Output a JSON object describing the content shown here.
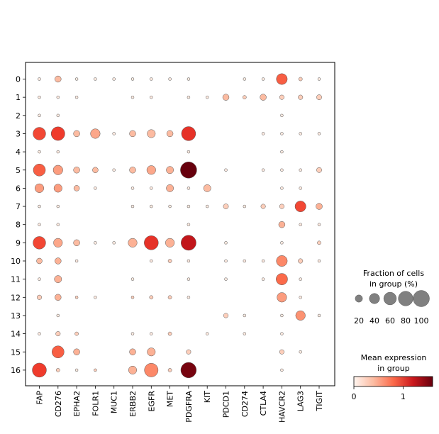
{
  "chart_data": {
    "type": "dotplot",
    "genes": [
      "FAP",
      "CD276",
      "EPHA2",
      "FOLR1",
      "MUC1",
      "ERBB2",
      "EGFR",
      "MET",
      "PDGFRA",
      "KIT",
      "PDCD1",
      "CD274",
      "CTLA4",
      "HAVCR2",
      "LAG3",
      "TIGIT"
    ],
    "groups": [
      "0",
      "1",
      "2",
      "3",
      "4",
      "5",
      "6",
      "7",
      "8",
      "9",
      "10",
      "11",
      "12",
      "13",
      "14",
      "15",
      "16"
    ],
    "fraction": [
      [
        3,
        15,
        3,
        3,
        3,
        3,
        3,
        3,
        3,
        0,
        0,
        3,
        3,
        45,
        5,
        3
      ],
      [
        3,
        3,
        3,
        0,
        0,
        3,
        3,
        0,
        3,
        3,
        15,
        5,
        15,
        8,
        8,
        10
      ],
      [
        3,
        3,
        0,
        0,
        0,
        0,
        0,
        0,
        0,
        0,
        0,
        0,
        0,
        3,
        0,
        0
      ],
      [
        60,
        70,
        15,
        35,
        3,
        15,
        25,
        15,
        75,
        0,
        0,
        0,
        3,
        3,
        3,
        3
      ],
      [
        3,
        3,
        0,
        0,
        0,
        0,
        0,
        0,
        3,
        0,
        0,
        0,
        0,
        3,
        0,
        0
      ],
      [
        55,
        35,
        15,
        12,
        3,
        15,
        30,
        20,
        100,
        0,
        3,
        0,
        3,
        3,
        3,
        10
      ],
      [
        30,
        25,
        12,
        3,
        0,
        3,
        3,
        20,
        3,
        20,
        0,
        0,
        0,
        3,
        3,
        0
      ],
      [
        3,
        3,
        0,
        0,
        0,
        3,
        3,
        3,
        3,
        3,
        10,
        3,
        8,
        8,
        45,
        15
      ],
      [
        3,
        3,
        0,
        0,
        0,
        0,
        0,
        0,
        3,
        0,
        0,
        0,
        0,
        15,
        3,
        3
      ],
      [
        60,
        30,
        15,
        3,
        3,
        30,
        75,
        30,
        85,
        0,
        3,
        0,
        0,
        3,
        0,
        5
      ],
      [
        12,
        15,
        3,
        0,
        0,
        0,
        3,
        5,
        3,
        0,
        3,
        3,
        3,
        45,
        8,
        3
      ],
      [
        3,
        20,
        0,
        0,
        0,
        3,
        0,
        0,
        3,
        0,
        3,
        0,
        3,
        50,
        3,
        0
      ],
      [
        8,
        15,
        3,
        3,
        0,
        3,
        5,
        5,
        3,
        0,
        0,
        0,
        0,
        35,
        3,
        0
      ],
      [
        0,
        3,
        0,
        0,
        0,
        0,
        0,
        0,
        0,
        0,
        8,
        3,
        0,
        3,
        35,
        3
      ],
      [
        3,
        8,
        5,
        0,
        0,
        3,
        3,
        5,
        0,
        3,
        0,
        3,
        0,
        3,
        0,
        0
      ],
      [
        0,
        55,
        15,
        0,
        0,
        15,
        25,
        0,
        8,
        0,
        0,
        0,
        0,
        8,
        3,
        0
      ],
      [
        75,
        5,
        3,
        3,
        0,
        25,
        70,
        5,
        90,
        0,
        0,
        0,
        0,
        3,
        0,
        0
      ]
    ],
    "expression": [
      [
        0.1,
        0.4,
        0.1,
        0.1,
        0.1,
        0.1,
        0.1,
        0.1,
        0.1,
        0,
        0,
        0.1,
        0.1,
        0.85,
        0.3,
        0.1
      ],
      [
        0.1,
        0.1,
        0.1,
        0,
        0,
        0.1,
        0.1,
        0,
        0.1,
        0.1,
        0.4,
        0.3,
        0.4,
        0.3,
        0.3,
        0.3
      ],
      [
        0.1,
        0.1,
        0,
        0,
        0,
        0,
        0,
        0,
        0,
        0,
        0,
        0,
        0,
        0.1,
        0,
        0
      ],
      [
        0.95,
        1.0,
        0.4,
        0.5,
        0.1,
        0.4,
        0.4,
        0.4,
        1.05,
        0,
        0,
        0,
        0.1,
        0.1,
        0.1,
        0.1
      ],
      [
        0.1,
        0.1,
        0,
        0,
        0,
        0,
        0,
        0,
        0.1,
        0,
        0,
        0,
        0,
        0.1,
        0,
        0
      ],
      [
        0.85,
        0.55,
        0.4,
        0.4,
        0.1,
        0.4,
        0.5,
        0.45,
        1.6,
        0,
        0.1,
        0,
        0.1,
        0.1,
        0.1,
        0.3
      ],
      [
        0.55,
        0.55,
        0.4,
        0.1,
        0,
        0.1,
        0.1,
        0.45,
        0.1,
        0.4,
        0,
        0,
        0,
        0.1,
        0.1,
        0
      ],
      [
        0.1,
        0.1,
        0,
        0,
        0,
        0.1,
        0.1,
        0.1,
        0.1,
        0.1,
        0.3,
        0.1,
        0.3,
        0.3,
        0.95,
        0.45
      ],
      [
        0.1,
        0.1,
        0,
        0,
        0,
        0,
        0,
        0,
        0.1,
        0,
        0,
        0,
        0,
        0.45,
        0.1,
        0.1
      ],
      [
        0.95,
        0.5,
        0.4,
        0.1,
        0.1,
        0.45,
        1.05,
        0.45,
        1.25,
        0,
        0.1,
        0,
        0,
        0.1,
        0,
        0.3
      ],
      [
        0.4,
        0.45,
        0.1,
        0,
        0,
        0,
        0.1,
        0.3,
        0.1,
        0,
        0.1,
        0.1,
        0.1,
        0.65,
        0.3,
        0.1
      ],
      [
        0.1,
        0.45,
        0,
        0,
        0,
        0.1,
        0,
        0,
        0.1,
        0,
        0.1,
        0,
        0.1,
        0.8,
        0.1,
        0
      ],
      [
        0.3,
        0.45,
        0.3,
        0.1,
        0,
        0.3,
        0.3,
        0.3,
        0.1,
        0,
        0,
        0,
        0,
        0.55,
        0.1,
        0
      ],
      [
        0,
        0.1,
        0,
        0,
        0,
        0,
        0,
        0,
        0,
        0,
        0.3,
        0.1,
        0,
        0.1,
        0.6,
        0.1
      ],
      [
        0.1,
        0.3,
        0.3,
        0,
        0,
        0.1,
        0.1,
        0.3,
        0,
        0.1,
        0,
        0.1,
        0,
        0.1,
        0,
        0
      ],
      [
        0,
        0.85,
        0.45,
        0,
        0,
        0.45,
        0.45,
        0,
        0.3,
        0,
        0,
        0,
        0,
        0.3,
        0.1,
        0
      ],
      [
        1.0,
        0.3,
        0.1,
        0.3,
        0,
        0.45,
        0.65,
        0.3,
        1.55,
        0,
        0,
        0,
        0,
        0.1,
        0,
        0
      ]
    ],
    "size_legend": {
      "title_line1": "Fraction of cells",
      "title_line2": "in group (%)",
      "ticks": [
        20,
        40,
        60,
        80,
        100
      ]
    },
    "color_legend": {
      "title_line1": "Mean expression",
      "title_line2": "in group",
      "ticks": [
        0,
        1
      ],
      "range": [
        0,
        1.6
      ],
      "colormap": "Reds"
    }
  }
}
